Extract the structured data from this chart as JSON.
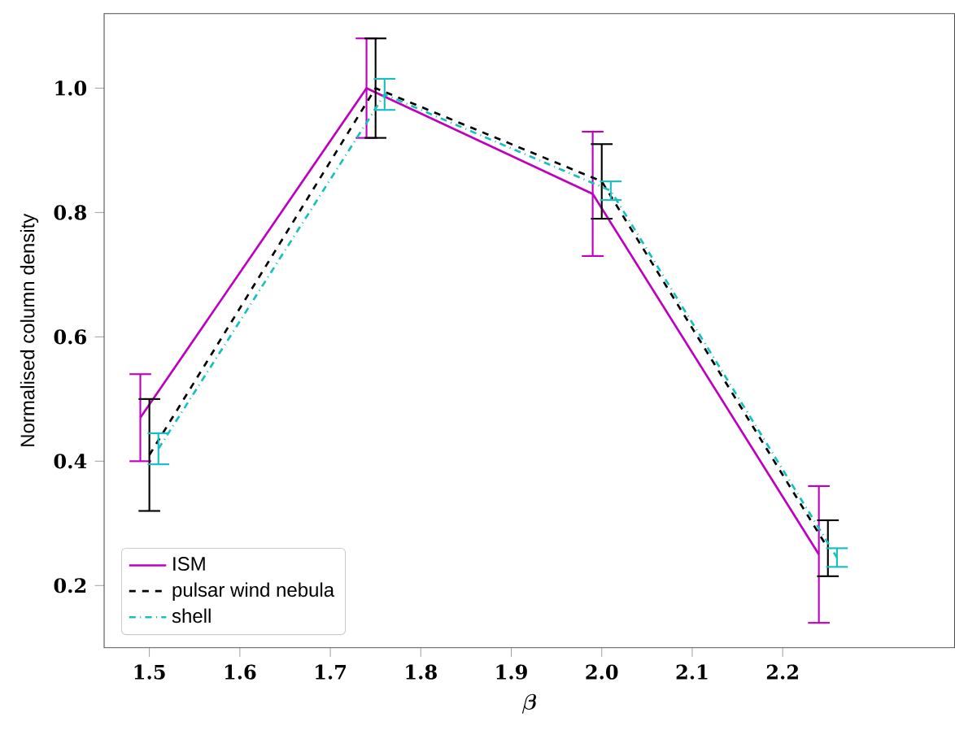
{
  "chart_data": {
    "type": "line",
    "xlabel": "\\boldsymbol{\\beta}",
    "ylabel": "Normalised column density",
    "xlim": [
      1.45,
      2.39
    ],
    "ylim": [
      0.1,
      1.12
    ],
    "xticks": [
      {
        "value": 1.5,
        "label": "1.5"
      },
      {
        "value": 1.6,
        "label": "1.6"
      },
      {
        "value": 1.7,
        "label": "1.7"
      },
      {
        "value": 1.8,
        "label": "1.8"
      },
      {
        "value": 1.9,
        "label": "1.9"
      },
      {
        "value": 2.0,
        "label": "2.0"
      },
      {
        "value": 2.1,
        "label": "2.1"
      },
      {
        "value": 2.2,
        "label": "2.2"
      }
    ],
    "yticks": [
      {
        "value": 0.2,
        "label": "0.2"
      },
      {
        "value": 0.4,
        "label": "0.4"
      },
      {
        "value": 0.6,
        "label": "0.6"
      },
      {
        "value": 0.8,
        "label": "0.8"
      },
      {
        "value": 1.0,
        "label": "1.0"
      }
    ],
    "legend": "bottom left",
    "grid": false,
    "marker": "none",
    "series": [
      {
        "name": "ISM",
        "color": "#bf00bf",
        "line_style": "solid",
        "x": [
          1.49,
          1.74,
          1.99,
          2.24
        ],
        "values": [
          0.47,
          1.0,
          0.83,
          0.25
        ],
        "errors": [
          0.07,
          0.08,
          0.1,
          0.11
        ]
      },
      {
        "name": "pulsar wind nebula",
        "color": "#000000",
        "line_style": "dashed",
        "x": [
          1.5,
          1.75,
          2.0,
          2.25
        ],
        "values": [
          0.41,
          1.0,
          0.85,
          0.26
        ],
        "errors": [
          0.09,
          0.08,
          0.06,
          0.045
        ]
      },
      {
        "name": "shell",
        "color": "#17bfbf",
        "line_style": "dashdot",
        "x": [
          1.51,
          1.76,
          2.01,
          2.26
        ],
        "values": [
          0.42,
          0.99,
          0.835,
          0.245
        ],
        "errors": [
          0.025,
          0.025,
          0.015,
          0.015
        ]
      }
    ]
  }
}
